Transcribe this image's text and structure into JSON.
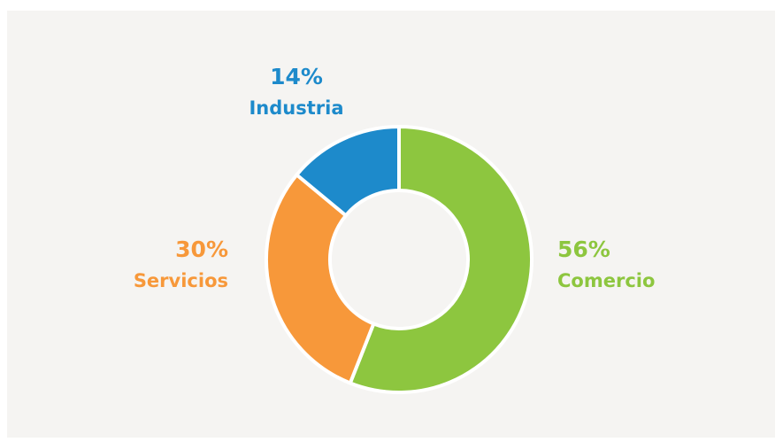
{
  "chart_data": {
    "type": "donut",
    "categories": [
      "Comercio",
      "Servicios",
      "Industria"
    ],
    "values": [
      56,
      30,
      14
    ],
    "value_labels": [
      "56%",
      "30%",
      "14%"
    ],
    "colors": [
      "#8dc63f",
      "#f7983a",
      "#1d8acb"
    ]
  }
}
